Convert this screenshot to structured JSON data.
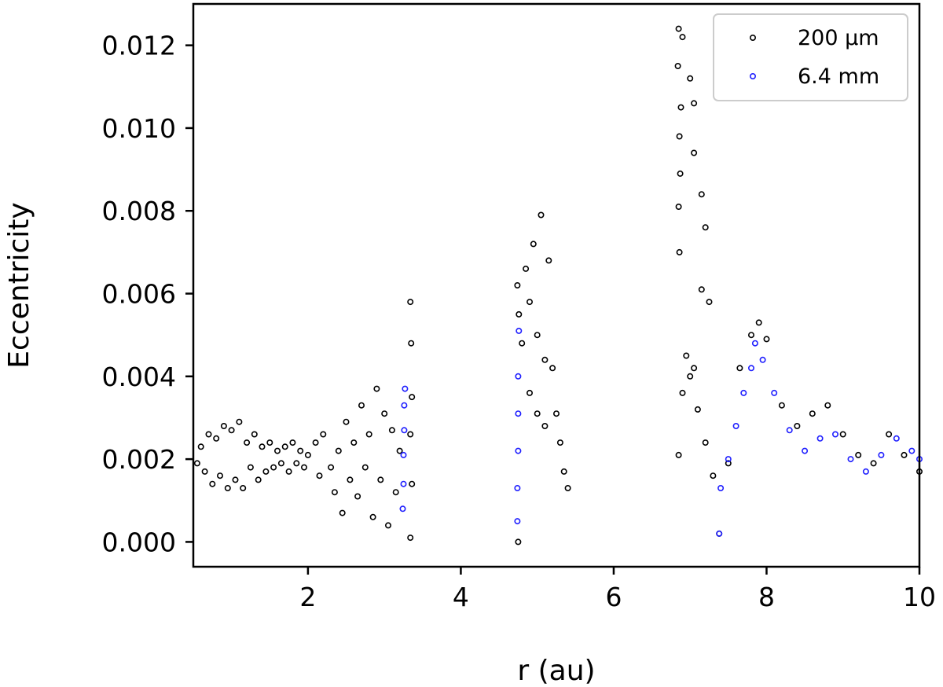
{
  "chart_data": {
    "type": "scatter",
    "title": "",
    "xlabel": "r (au)",
    "ylabel": "Eccentricity",
    "xlim": [
      0.5,
      10
    ],
    "ylim": [
      -0.0006,
      0.013
    ],
    "xticks": [
      2,
      4,
      6,
      8,
      10
    ],
    "xtick_labels": [
      "2",
      "4",
      "6",
      "8",
      "10"
    ],
    "yticks": [
      0.0,
      0.002,
      0.004,
      0.006,
      0.008,
      0.01,
      0.012
    ],
    "ytick_labels": [
      "0.000",
      "0.002",
      "0.004",
      "0.006",
      "0.008",
      "0.010",
      "0.012"
    ],
    "grid": false,
    "legend": {
      "placement": "top-right"
    },
    "series": [
      {
        "name": "200 μm",
        "color": "#000000",
        "marker": "hollow-circle",
        "points": [
          [
            0.55,
            0.0019
          ],
          [
            0.6,
            0.0023
          ],
          [
            0.65,
            0.0017
          ],
          [
            0.7,
            0.0026
          ],
          [
            0.75,
            0.0014
          ],
          [
            0.8,
            0.0025
          ],
          [
            0.85,
            0.0016
          ],
          [
            0.9,
            0.0028
          ],
          [
            0.95,
            0.0013
          ],
          [
            1.0,
            0.0027
          ],
          [
            1.05,
            0.0015
          ],
          [
            1.1,
            0.0029
          ],
          [
            1.15,
            0.0013
          ],
          [
            1.2,
            0.0024
          ],
          [
            1.25,
            0.0018
          ],
          [
            1.3,
            0.0026
          ],
          [
            1.35,
            0.0015
          ],
          [
            1.4,
            0.0023
          ],
          [
            1.45,
            0.0017
          ],
          [
            1.5,
            0.0024
          ],
          [
            1.55,
            0.0018
          ],
          [
            1.6,
            0.0022
          ],
          [
            1.65,
            0.0019
          ],
          [
            1.7,
            0.0023
          ],
          [
            1.75,
            0.0017
          ],
          [
            1.8,
            0.0024
          ],
          [
            1.85,
            0.0019
          ],
          [
            1.9,
            0.0022
          ],
          [
            1.95,
            0.0018
          ],
          [
            2.0,
            0.0021
          ],
          [
            2.1,
            0.0024
          ],
          [
            2.15,
            0.0016
          ],
          [
            2.2,
            0.0026
          ],
          [
            2.3,
            0.0018
          ],
          [
            2.35,
            0.0012
          ],
          [
            2.4,
            0.0022
          ],
          [
            2.45,
            0.0007
          ],
          [
            2.5,
            0.0029
          ],
          [
            2.55,
            0.0015
          ],
          [
            2.6,
            0.0024
          ],
          [
            2.65,
            0.0011
          ],
          [
            2.7,
            0.0033
          ],
          [
            2.75,
            0.0018
          ],
          [
            2.8,
            0.0026
          ],
          [
            2.85,
            0.0006
          ],
          [
            2.9,
            0.0037
          ],
          [
            2.95,
            0.0015
          ],
          [
            3.0,
            0.0031
          ],
          [
            3.05,
            0.0004
          ],
          [
            3.1,
            0.0027
          ],
          [
            3.15,
            0.0012
          ],
          [
            3.2,
            0.0022
          ],
          [
            3.34,
            0.0001
          ],
          [
            3.34,
            0.0058
          ],
          [
            3.35,
            0.0048
          ],
          [
            3.36,
            0.0035
          ],
          [
            3.34,
            0.0026
          ],
          [
            3.36,
            0.0014
          ],
          [
            4.75,
            0.0
          ],
          [
            4.74,
            0.0062
          ],
          [
            4.76,
            0.0055
          ],
          [
            4.8,
            0.0048
          ],
          [
            4.85,
            0.0066
          ],
          [
            4.9,
            0.0058
          ],
          [
            4.95,
            0.0072
          ],
          [
            5.0,
            0.005
          ],
          [
            5.05,
            0.0079
          ],
          [
            5.1,
            0.0044
          ],
          [
            5.15,
            0.0068
          ],
          [
            5.2,
            0.0042
          ],
          [
            5.25,
            0.0031
          ],
          [
            5.3,
            0.0024
          ],
          [
            5.35,
            0.0017
          ],
          [
            5.4,
            0.0013
          ],
          [
            5.0,
            0.0031
          ],
          [
            5.1,
            0.0028
          ],
          [
            4.9,
            0.0036
          ],
          [
            6.85,
            0.0124
          ],
          [
            6.9,
            0.0122
          ],
          [
            6.84,
            0.0115
          ],
          [
            6.88,
            0.0105
          ],
          [
            7.0,
            0.0112
          ],
          [
            7.05,
            0.0106
          ],
          [
            6.86,
            0.0098
          ],
          [
            7.05,
            0.0094
          ],
          [
            6.87,
            0.0089
          ],
          [
            6.85,
            0.0081
          ],
          [
            7.15,
            0.0084
          ],
          [
            7.2,
            0.0076
          ],
          [
            6.86,
            0.007
          ],
          [
            7.15,
            0.0061
          ],
          [
            7.25,
            0.0058
          ],
          [
            6.95,
            0.0045
          ],
          [
            7.0,
            0.004
          ],
          [
            7.05,
            0.0042
          ],
          [
            7.1,
            0.0032
          ],
          [
            6.9,
            0.0036
          ],
          [
            6.85,
            0.0021
          ],
          [
            7.2,
            0.0024
          ],
          [
            7.3,
            0.0016
          ],
          [
            7.38,
            0.0002
          ],
          [
            7.5,
            0.0019
          ],
          [
            7.65,
            0.0042
          ],
          [
            7.8,
            0.005
          ],
          [
            7.9,
            0.0053
          ],
          [
            8.0,
            0.0049
          ],
          [
            8.2,
            0.0033
          ],
          [
            8.4,
            0.0028
          ],
          [
            8.6,
            0.0031
          ],
          [
            8.8,
            0.0033
          ],
          [
            9.0,
            0.0026
          ],
          [
            9.2,
            0.0021
          ],
          [
            9.4,
            0.0019
          ],
          [
            9.6,
            0.0026
          ],
          [
            9.8,
            0.0021
          ],
          [
            10.0,
            0.0017
          ]
        ]
      },
      {
        "name": "6.4 mm",
        "color": "#1f1fff",
        "marker": "hollow-circle",
        "points": [
          [
            3.24,
            0.0008
          ],
          [
            3.25,
            0.0014
          ],
          [
            3.25,
            0.0021
          ],
          [
            3.26,
            0.0027
          ],
          [
            3.26,
            0.0033
          ],
          [
            3.27,
            0.0037
          ],
          [
            4.74,
            0.0005
          ],
          [
            4.74,
            0.0013
          ],
          [
            4.75,
            0.0022
          ],
          [
            4.75,
            0.0031
          ],
          [
            4.75,
            0.004
          ],
          [
            4.76,
            0.0051
          ],
          [
            7.38,
            0.0002
          ],
          [
            7.4,
            0.0013
          ],
          [
            7.5,
            0.002
          ],
          [
            7.6,
            0.0028
          ],
          [
            7.7,
            0.0036
          ],
          [
            7.8,
            0.0042
          ],
          [
            7.85,
            0.0048
          ],
          [
            7.95,
            0.0044
          ],
          [
            8.1,
            0.0036
          ],
          [
            8.3,
            0.0027
          ],
          [
            8.5,
            0.0022
          ],
          [
            8.7,
            0.0025
          ],
          [
            8.9,
            0.0026
          ],
          [
            9.1,
            0.002
          ],
          [
            9.3,
            0.0017
          ],
          [
            9.5,
            0.0021
          ],
          [
            9.7,
            0.0025
          ],
          [
            9.9,
            0.0022
          ],
          [
            10.0,
            0.002
          ]
        ]
      }
    ]
  }
}
